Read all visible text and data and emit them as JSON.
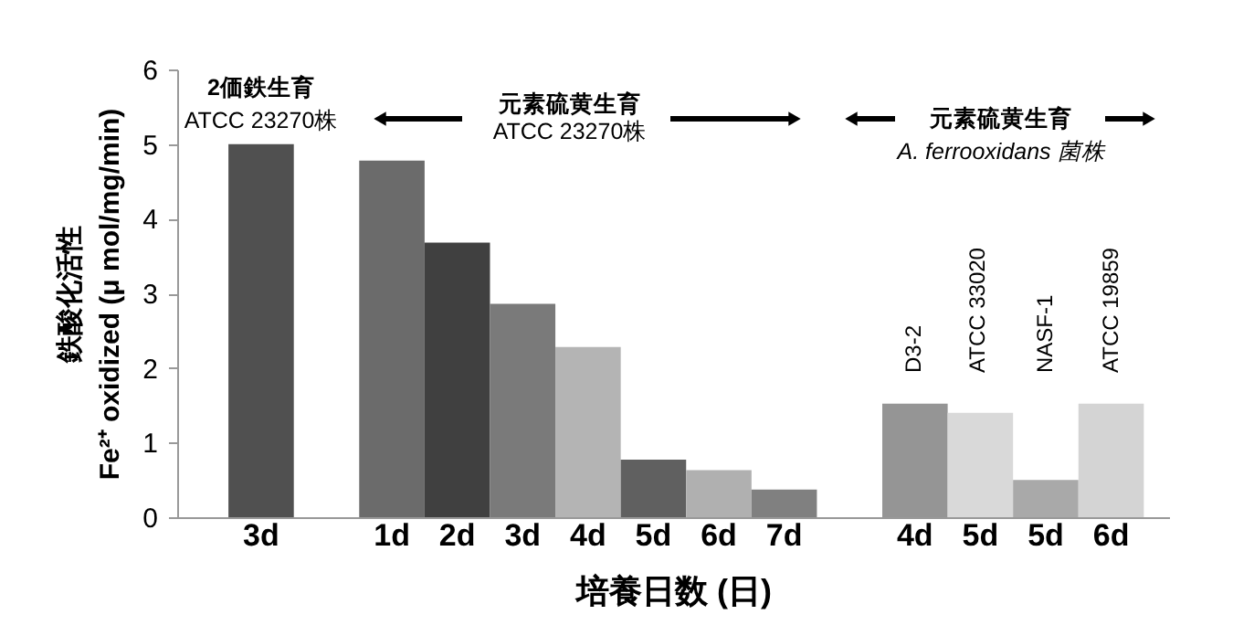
{
  "chart_data": {
    "type": "bar",
    "xlabel": "培養日数 (日)",
    "ylabel": "鉄酸化活性\nFe²⁺ oxidized (μ mol/mg/min)",
    "categories": [
      "3d",
      null,
      "1d",
      "2d",
      "3d",
      "4d",
      "5d",
      "6d",
      "7d",
      null,
      "4d",
      "5d",
      "5d",
      "6d"
    ],
    "values": [
      5.0,
      null,
      4.78,
      3.68,
      2.86,
      2.28,
      0.77,
      0.63,
      0.37,
      null,
      1.52,
      1.4,
      0.5,
      1.52
    ],
    "colors": [
      "#505050",
      "#ffffff",
      "#6b6b6b",
      "#404040",
      "#7a7a7a",
      "#b4b4b4",
      "#606060",
      "#b0b0b0",
      "#808080",
      "#ffffff",
      "#959595",
      "#d9d9d9",
      "#a9a9a9",
      "#d4d4d4"
    ],
    "ylim": [
      0,
      6
    ],
    "yticks": [
      0,
      1,
      2,
      3,
      4,
      5,
      6
    ],
    "grid": false,
    "annotations": [
      "2価鉄生育",
      "ATCC 23270株",
      "元素硫黄生育",
      "ATCC 23270株",
      "元素硫黄生育",
      "A. ferrooxidans 菌株",
      "D3-2",
      "ATCC 33020",
      "NASF-1",
      "ATCC 19859"
    ]
  }
}
